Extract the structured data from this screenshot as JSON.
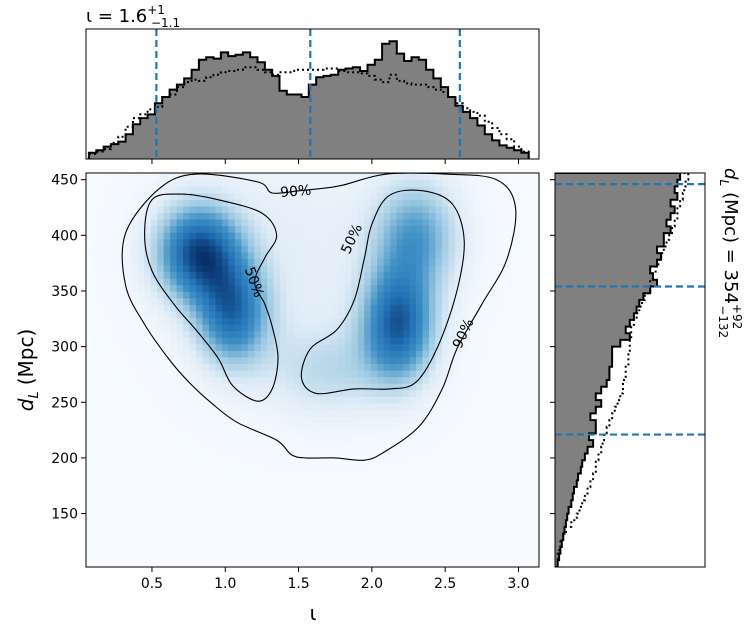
{
  "chart_data": [
    {
      "panel": "top-marginal",
      "type": "histogram",
      "title_main": "ι = 1.6",
      "title_sup": "+1",
      "title_sub": "−1.1",
      "xlim": [
        0.05,
        3.14
      ],
      "quantile_lines": [
        0.53,
        1.58,
        2.6
      ],
      "series": [
        {
          "style": "filled-step",
          "bins": [
            0.07,
            0.12,
            0.17,
            0.22,
            0.27,
            0.32,
            0.37,
            0.42,
            0.47,
            0.52,
            0.57,
            0.62,
            0.67,
            0.72,
            0.77,
            0.82,
            0.87,
            0.92,
            0.97,
            1.02,
            1.07,
            1.12,
            1.17,
            1.22,
            1.27,
            1.32,
            1.37,
            1.42,
            1.47,
            1.52,
            1.57,
            1.62,
            1.67,
            1.72,
            1.77,
            1.82,
            1.87,
            1.92,
            1.97,
            2.02,
            2.07,
            2.12,
            2.17,
            2.22,
            2.27,
            2.32,
            2.37,
            2.42,
            2.47,
            2.52,
            2.57,
            2.62,
            2.67,
            2.72,
            2.77,
            2.82,
            2.87,
            2.92,
            2.97,
            3.02,
            3.07
          ],
          "values": [
            0.05,
            0.07,
            0.1,
            0.12,
            0.14,
            0.2,
            0.28,
            0.33,
            0.36,
            0.45,
            0.5,
            0.56,
            0.6,
            0.65,
            0.72,
            0.8,
            0.82,
            0.81,
            0.86,
            0.83,
            0.84,
            0.86,
            0.82,
            0.78,
            0.72,
            0.67,
            0.55,
            0.52,
            0.52,
            0.5,
            0.6,
            0.66,
            0.67,
            0.68,
            0.72,
            0.73,
            0.74,
            0.71,
            0.76,
            0.8,
            0.93,
            0.95,
            0.85,
            0.79,
            0.82,
            0.8,
            0.72,
            0.65,
            0.58,
            0.5,
            0.43,
            0.38,
            0.33,
            0.27,
            0.2,
            0.15,
            0.11,
            0.09,
            0.07,
            0.05
          ]
        },
        {
          "style": "dotted-step",
          "values": [
            0.04,
            0.06,
            0.08,
            0.13,
            0.18,
            0.26,
            0.33,
            0.36,
            0.4,
            0.42,
            0.5,
            0.52,
            0.58,
            0.62,
            0.64,
            0.63,
            0.66,
            0.68,
            0.7,
            0.71,
            0.72,
            0.74,
            0.74,
            0.72,
            0.7,
            0.68,
            0.7,
            0.7,
            0.72,
            0.72,
            0.72,
            0.72,
            0.73,
            0.73,
            0.71,
            0.7,
            0.7,
            0.69,
            0.67,
            0.64,
            0.62,
            0.68,
            0.63,
            0.61,
            0.6,
            0.6,
            0.58,
            0.56,
            0.54,
            0.5,
            0.45,
            0.41,
            0.38,
            0.35,
            0.3,
            0.25,
            0.2,
            0.16,
            0.1,
            0.06
          ]
        }
      ]
    },
    {
      "panel": "main-2d-density",
      "type": "heatmap",
      "xlabel": "ι",
      "ylabel_main": "d",
      "ylabel_sub": "L",
      "ylabel_unit": "(Mpc)",
      "xlim": [
        0.05,
        3.14
      ],
      "ylim": [
        102,
        456
      ],
      "xticks": [
        0.5,
        1.0,
        1.5,
        2.0,
        2.5,
        3.0
      ],
      "xtick_labels": [
        "0.5",
        "1.0",
        "1.5",
        "2.0",
        "2.5",
        "3.0"
      ],
      "yticks": [
        150,
        200,
        250,
        300,
        350,
        400,
        450
      ],
      "ytick_labels": [
        "150",
        "200",
        "250",
        "300",
        "350",
        "400",
        "450"
      ],
      "colormap": [
        "#f7fbff",
        "#deebf7",
        "#9ecae1",
        "#4292c6",
        "#2171b5",
        "#08306b"
      ],
      "modes": [
        {
          "x": 0.82,
          "y": 385,
          "sx": 0.2,
          "sy": 30,
          "w": 1.0
        },
        {
          "x": 1.05,
          "y": 330,
          "sx": 0.17,
          "sy": 32,
          "w": 0.8
        },
        {
          "x": 2.18,
          "y": 320,
          "sx": 0.17,
          "sy": 35,
          "w": 0.92
        },
        {
          "x": 2.3,
          "y": 400,
          "sx": 0.2,
          "sy": 35,
          "w": 0.55
        },
        {
          "x": 1.7,
          "y": 278,
          "sx": 0.3,
          "sy": 28,
          "w": 0.25
        },
        {
          "x": 1.5,
          "y": 380,
          "sx": 0.5,
          "sy": 70,
          "w": 0.12
        }
      ],
      "contour_labels": [
        {
          "text": "90%",
          "x": 1.48,
          "y": 440,
          "angle": -5
        },
        {
          "text": "50%",
          "x": 1.2,
          "y": 358,
          "angle": 70
        },
        {
          "text": "50%",
          "x": 1.86,
          "y": 397,
          "angle": -65
        },
        {
          "text": "90%",
          "x": 2.62,
          "y": 312,
          "angle": -65
        }
      ],
      "contours": [
        {
          "level": "90%",
          "points": [
            [
              0.32,
              402
            ],
            [
              0.55,
              442
            ],
            [
              0.8,
              455
            ],
            [
              1.22,
              448
            ],
            [
              1.32,
              438
            ],
            [
              1.5,
              440
            ],
            [
              1.65,
              442
            ],
            [
              1.8,
              445
            ],
            [
              2.1,
              455
            ],
            [
              2.5,
              455
            ],
            [
              2.85,
              450
            ],
            [
              2.98,
              425
            ],
            [
              2.92,
              378
            ],
            [
              2.75,
              338
            ],
            [
              2.58,
              298
            ],
            [
              2.48,
              262
            ],
            [
              2.32,
              228
            ],
            [
              2.08,
              205
            ],
            [
              1.95,
              198
            ],
            [
              1.75,
              200
            ],
            [
              1.55,
              200
            ],
            [
              1.45,
              203
            ],
            [
              1.35,
              216
            ],
            [
              1.08,
              232
            ],
            [
              0.9,
              250
            ],
            [
              0.76,
              267
            ],
            [
              0.62,
              288
            ],
            [
              0.45,
              320
            ],
            [
              0.32,
              355
            ]
          ]
        },
        {
          "level": "50%-left",
          "points": [
            [
              0.5,
              432
            ],
            [
              0.7,
              437
            ],
            [
              0.95,
              432
            ],
            [
              1.25,
              420
            ],
            [
              1.35,
              400
            ],
            [
              1.27,
              380
            ],
            [
              1.2,
              358
            ],
            [
              1.27,
              338
            ],
            [
              1.32,
              318
            ],
            [
              1.36,
              290
            ],
            [
              1.32,
              262
            ],
            [
              1.22,
              251
            ],
            [
              1.05,
              265
            ],
            [
              0.95,
              290
            ],
            [
              0.8,
              315
            ],
            [
              0.65,
              338
            ],
            [
              0.5,
              368
            ],
            [
              0.45,
              400
            ]
          ]
        },
        {
          "level": "50%-right",
          "points": [
            [
              2.0,
              410
            ],
            [
              2.12,
              436
            ],
            [
              2.35,
              440
            ],
            [
              2.55,
              428
            ],
            [
              2.63,
              395
            ],
            [
              2.58,
              350
            ],
            [
              2.45,
              300
            ],
            [
              2.3,
              268
            ],
            [
              2.12,
              262
            ],
            [
              1.88,
              262
            ],
            [
              1.62,
              258
            ],
            [
              1.52,
              272
            ],
            [
              1.58,
              298
            ],
            [
              1.76,
              315
            ],
            [
              1.88,
              342
            ],
            [
              1.95,
              380
            ]
          ]
        }
      ]
    },
    {
      "panel": "right-marginal",
      "type": "histogram",
      "orientation": "horizontal",
      "label_main": "d",
      "label_sub": "L",
      "label_rest": "(Mpc) = 354",
      "label_sup": "+92",
      "label_sub2": "−132",
      "ylim": [
        102,
        456
      ],
      "quantile_lines": [
        221,
        354,
        446
      ],
      "series": [
        {
          "style": "filled-step",
          "bins": [
            102,
            108,
            114,
            120,
            126,
            132,
            138,
            144,
            150,
            156,
            162,
            168,
            174,
            180,
            186,
            192,
            198,
            204,
            210,
            216,
            222,
            228,
            234,
            240,
            246,
            252,
            258,
            264,
            270,
            276,
            282,
            288,
            294,
            300,
            306,
            312,
            318,
            324,
            330,
            336,
            342,
            348,
            354,
            360,
            366,
            372,
            378,
            384,
            390,
            396,
            402,
            408,
            414,
            420,
            426,
            432,
            438,
            444,
            450,
            456
          ],
          "values": [
            0.02,
            0.03,
            0.04,
            0.05,
            0.06,
            0.07,
            0.08,
            0.09,
            0.1,
            0.12,
            0.13,
            0.14,
            0.16,
            0.17,
            0.19,
            0.2,
            0.22,
            0.24,
            0.28,
            0.25,
            0.3,
            0.3,
            0.26,
            0.3,
            0.34,
            0.3,
            0.34,
            0.38,
            0.4,
            0.4,
            0.42,
            0.42,
            0.42,
            0.48,
            0.55,
            0.52,
            0.55,
            0.58,
            0.6,
            0.62,
            0.65,
            0.7,
            0.75,
            0.72,
            0.7,
            0.75,
            0.78,
            0.75,
            0.8,
            0.8,
            0.85,
            0.82,
            0.85,
            0.88,
            0.85,
            0.9,
            0.88,
            0.9,
            0.92
          ]
        },
        {
          "style": "dotted-step",
          "values": [
            0.02,
            0.02,
            0.03,
            0.04,
            0.06,
            0.08,
            0.12,
            0.16,
            0.18,
            0.2,
            0.22,
            0.24,
            0.26,
            0.28,
            0.3,
            0.3,
            0.32,
            0.34,
            0.35,
            0.36,
            0.38,
            0.4,
            0.42,
            0.44,
            0.46,
            0.48,
            0.5,
            0.5,
            0.52,
            0.52,
            0.54,
            0.54,
            0.55,
            0.55,
            0.56,
            0.56,
            0.58,
            0.6,
            0.62,
            0.64,
            0.66,
            0.7,
            0.7,
            0.72,
            0.74,
            0.76,
            0.78,
            0.8,
            0.82,
            0.84,
            0.86,
            0.88,
            0.9,
            0.9,
            0.92,
            0.94,
            0.95,
            0.96,
            0.98
          ]
        }
      ]
    }
  ]
}
